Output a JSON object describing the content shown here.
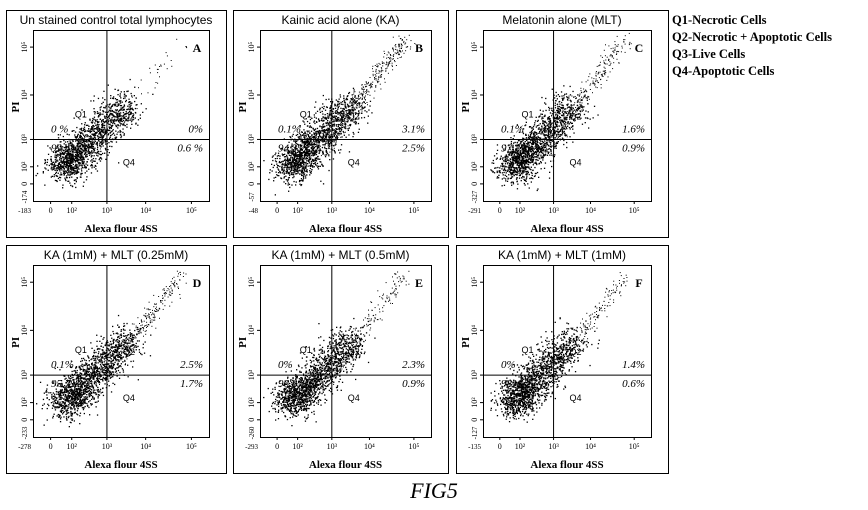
{
  "legend": [
    "Q1-Necrotic Cells",
    "Q2-Necrotic + Apoptotic Cells",
    "Q3-Live Cells",
    "Q4-Apoptotic Cells"
  ],
  "figure_caption": "FIG5",
  "common": {
    "xlabel": "Alexa flour 4SS",
    "ylabel": "PI",
    "quadrant_labels": [
      "Q1",
      "Q2",
      "Q4"
    ],
    "x_ticks": [
      "0",
      "10²",
      "10³",
      "10⁴",
      "10⁵"
    ],
    "y_ticks": [
      "0",
      "10²",
      "10³",
      "10⁴",
      "10⁵"
    ]
  },
  "chart_data": [
    {
      "type": "scatter",
      "panel": "A",
      "title": "Un stained control total lymphocytes",
      "x_min_label": "-183",
      "y_min_label": "-174",
      "quadrants": {
        "Q1": "0 %",
        "Q2": "0%",
        "Q3": "99.4%",
        "Q4": "0.6 %"
      }
    },
    {
      "type": "scatter",
      "panel": "B",
      "title": "Kainic acid alone (KA)",
      "x_min_label": "-48",
      "y_min_label": "-57",
      "quadrants": {
        "Q1": "0.1%",
        "Q2": "3.1%",
        "Q3": "94.3%",
        "Q4": "2.5%"
      }
    },
    {
      "type": "scatter",
      "panel": "C",
      "title": "Melatonin alone (MLT)",
      "x_min_label": "-291",
      "y_min_label": "-327",
      "quadrants": {
        "Q1": "0.1%",
        "Q2": "1.6%",
        "Q3": "97.3%",
        "Q4": "0.9%"
      }
    },
    {
      "type": "scatter",
      "panel": "D",
      "title": "KA (1mM) + MLT (0.25mM)",
      "x_min_label": "-278",
      "y_min_label": "-233",
      "quadrants": {
        "Q1": "0.1%",
        "Q2": "2.5%",
        "Q3": "95.7%",
        "Q4": "1.7%"
      }
    },
    {
      "type": "scatter",
      "panel": "E",
      "title": "KA (1mM) + MLT (0.5mM)",
      "x_min_label": "-293",
      "y_min_label": "-260",
      "quadrants": {
        "Q1": "0%",
        "Q2": "2.3%",
        "Q3": "96.8%",
        "Q4": "0.9%"
      }
    },
    {
      "type": "scatter",
      "panel": "F",
      "title": "KA (1mM) + MLT (1mM)",
      "x_min_label": "-135",
      "y_min_label": "-127",
      "quadrants": {
        "Q1": "0%",
        "Q2": "1.4%",
        "Q3": "98%",
        "Q4": "0.6%"
      }
    }
  ]
}
